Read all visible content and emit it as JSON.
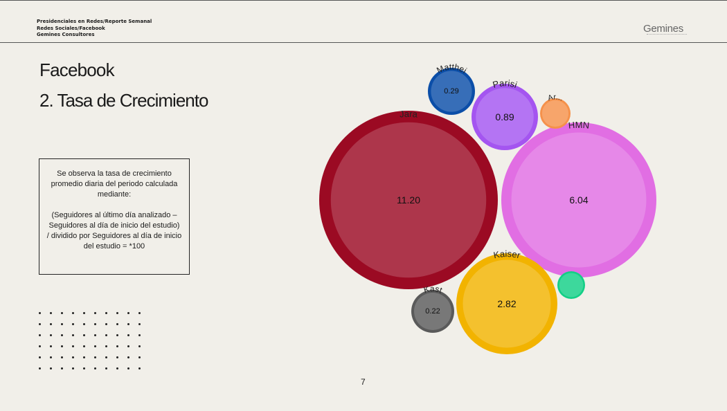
{
  "header": {
    "line1": "Presidenciales en Redes/Reporte Semanal",
    "line2": "Redes Sociales/Facebook",
    "line3": "Gemines Consultores",
    "logo": "Gemines"
  },
  "title": {
    "line1": "Facebook",
    "line2": "2. Tasa de Crecimiento"
  },
  "note": {
    "p1": "Se observa la tasa de crecimiento promedio diaria del periodo calculada mediante:",
    "p2": "(Seguidores al último día analizado – Seguidores al día de inicio del estudio)",
    "p3": "/ dividido por Seguidores al día de inicio del estudio = *100"
  },
  "page_number": "7",
  "chart_data": {
    "type": "bubble",
    "title": "",
    "series": [
      {
        "label": "Jara",
        "value": 11.2,
        "value_label": "11.20",
        "color": "#9b0a23"
      },
      {
        "label": "HMN",
        "value": 6.04,
        "value_label": "6.04",
        "color": "#e16ee3"
      },
      {
        "label": "Kaiser",
        "value": 2.82,
        "value_label": "2.82",
        "color": "#f2b300"
      },
      {
        "label": "Parisi",
        "value": 0.89,
        "value_label": "0.89",
        "color": "#a455f0"
      },
      {
        "label": "Matthei",
        "value": 0.29,
        "value_label": "0.29",
        "color": "#0b4ea8"
      },
      {
        "label": "Kast",
        "value": 0.22,
        "value_label": "0.22",
        "color": "#5a5a5a"
      },
      {
        "label": "Ar...",
        "value": null,
        "value_label": "",
        "color": "#f5914a"
      },
      {
        "label": "",
        "value": null,
        "value_label": "",
        "color": "#13cf86"
      }
    ]
  }
}
